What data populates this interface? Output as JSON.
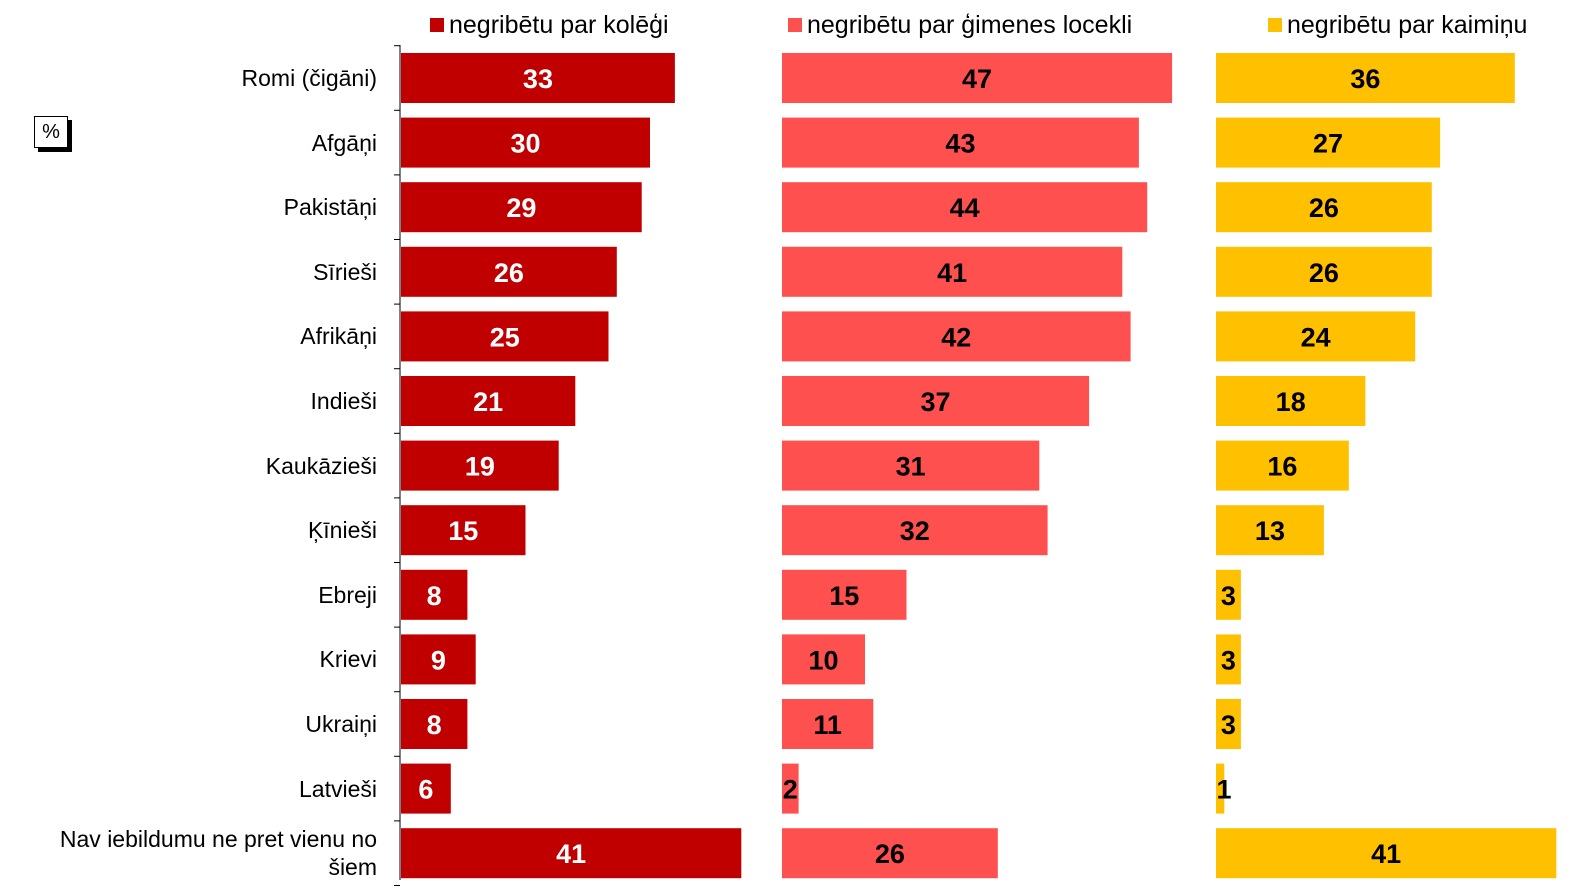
{
  "chart_data": {
    "type": "bar",
    "orientation": "horizontal",
    "annotation": "%",
    "categories": [
      "Romi (čigāni)",
      "Afgāņi",
      "Pakistāņi",
      "Sīrieši",
      "Afrikāņi",
      "Indieši",
      "Kaukāzieši",
      "Ķīnieši",
      "Ebreji",
      "Krievi",
      "Ukraiņi",
      "Latvieši",
      "Nav iebildumu ne pret vienu no šiem"
    ],
    "series": [
      {
        "name": "negribētu par kolēģi",
        "color": "#c00000",
        "label_color": "#ffffff",
        "values": [
          33,
          30,
          29,
          26,
          25,
          21,
          19,
          15,
          8,
          9,
          8,
          6,
          41
        ]
      },
      {
        "name": "negribētu par ģimenes locekli",
        "color": "#ff5050",
        "label_color": "#000000",
        "values": [
          47,
          43,
          44,
          41,
          42,
          37,
          31,
          32,
          15,
          10,
          11,
          2,
          26
        ]
      },
      {
        "name": "negribētu par kaimiņu",
        "color": "#ffc000",
        "label_color": "#000000",
        "values": [
          36,
          27,
          26,
          26,
          24,
          18,
          16,
          13,
          3,
          3,
          3,
          1,
          41
        ]
      }
    ]
  }
}
